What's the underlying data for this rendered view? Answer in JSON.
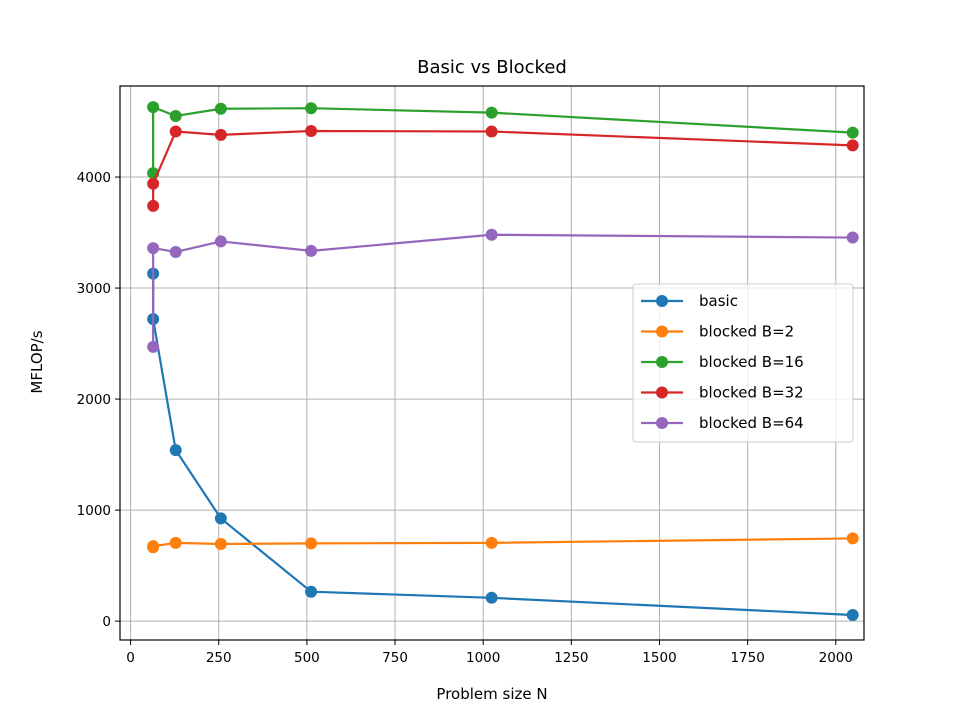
{
  "chart_data": {
    "type": "line",
    "title": "Basic vs Blocked",
    "xlabel": "Problem size N",
    "ylabel": "MFLOP/s",
    "xlim": [
      -30,
      2080
    ],
    "ylim": [
      -170,
      4820
    ],
    "xticks": [
      0,
      250,
      500,
      750,
      1000,
      1250,
      1500,
      1750,
      2000
    ],
    "yticks": [
      0,
      1000,
      2000,
      3000,
      4000
    ],
    "grid": true,
    "legend_position": "center-right",
    "series": [
      {
        "name": "basic",
        "color": "#1f77b4",
        "x": [
          64,
          64,
          128,
          256,
          512,
          1024,
          2048
        ],
        "y": [
          3130,
          2720,
          1540,
          925,
          265,
          210,
          55
        ]
      },
      {
        "name": "blocked B=2",
        "color": "#ff7f0e",
        "x": [
          64,
          64,
          128,
          256,
          512,
          1024,
          2048
        ],
        "y": [
          665,
          675,
          705,
          695,
          700,
          705,
          745
        ]
      },
      {
        "name": "blocked B=16",
        "color": "#2ca02c",
        "x": [
          64,
          64,
          128,
          256,
          512,
          1024,
          2048
        ],
        "y": [
          4035,
          4630,
          4550,
          4615,
          4620,
          4580,
          4400
        ]
      },
      {
        "name": "blocked B=32",
        "color": "#d62728",
        "x": [
          64,
          64,
          128,
          256,
          512,
          1024,
          2048
        ],
        "y": [
          3740,
          3940,
          4410,
          4380,
          4415,
          4410,
          4285
        ]
      },
      {
        "name": "blocked B=64",
        "color": "#9467bd",
        "x": [
          64,
          64,
          128,
          256,
          512,
          1024,
          2048
        ],
        "y": [
          2470,
          3360,
          3325,
          3420,
          3335,
          3480,
          3455
        ]
      }
    ]
  }
}
